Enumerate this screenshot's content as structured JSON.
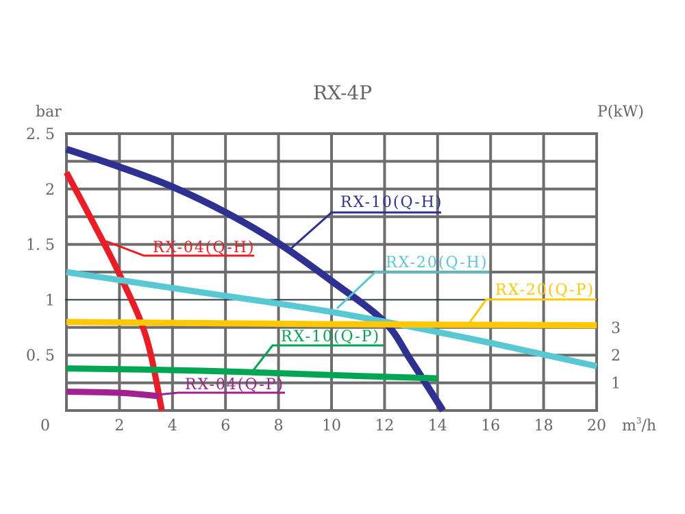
{
  "chart_data": {
    "type": "line",
    "title": "RX-4P",
    "ylabel": "bar",
    "y2label": "P(kW)",
    "xlabel": "m³/h",
    "xlabel_base": "m",
    "xlabel_sup": "3",
    "xlabel_tail": "/h",
    "xlim": [
      0,
      20
    ],
    "ylim": [
      0,
      2.5
    ],
    "grid": true,
    "x_ticks": [
      "0",
      "2",
      "4",
      "6",
      "8",
      "10",
      "12",
      "14",
      "16",
      "18",
      "20"
    ],
    "y_ticks": [
      {
        "v": 0.5,
        "label": "0. 5"
      },
      {
        "v": 1,
        "label": "1"
      },
      {
        "v": 1.5,
        "label": "1. 5"
      },
      {
        "v": 2,
        "label": "2"
      },
      {
        "v": 2.5,
        "label": "2. 5"
      }
    ],
    "y2_ticks": [
      {
        "v": 1,
        "label": "1"
      },
      {
        "v": 2,
        "label": "2"
      },
      {
        "v": 3,
        "label": "3"
      }
    ],
    "series": [
      {
        "name": "RX-10(Q-H)",
        "color": "#2e3192",
        "x": [
          0,
          2,
          4,
          6,
          8,
          10,
          12,
          13,
          14.2
        ],
        "y": [
          2.36,
          2.2,
          2.02,
          1.79,
          1.51,
          1.17,
          0.8,
          0.45,
          0
        ]
      },
      {
        "name": "RX-04(Q-H)",
        "color": "#ed1c24",
        "x": [
          0,
          1,
          2,
          3,
          3.6
        ],
        "y": [
          2.15,
          1.7,
          1.23,
          0.67,
          0
        ]
      },
      {
        "name": "RX-20(Q-H)",
        "color": "#58c8d2",
        "x": [
          0,
          5,
          10,
          15,
          20
        ],
        "y": [
          1.25,
          1.07,
          0.89,
          0.66,
          0.4
        ]
      },
      {
        "name": "RX-20(Q-P)",
        "color": "#ffc800",
        "x": [
          0,
          10,
          20
        ],
        "y": [
          0.8,
          0.78,
          0.77
        ]
      },
      {
        "name": "RX-10(Q-P)",
        "color": "#00a651",
        "x": [
          0,
          5,
          10,
          14
        ],
        "y": [
          0.38,
          0.36,
          0.32,
          0.29
        ]
      },
      {
        "name": "RX-04(Q-P)",
        "color": "#a0218f",
        "x": [
          0,
          2,
          3.5
        ],
        "y": [
          0.17,
          0.16,
          0.13
        ]
      }
    ]
  }
}
